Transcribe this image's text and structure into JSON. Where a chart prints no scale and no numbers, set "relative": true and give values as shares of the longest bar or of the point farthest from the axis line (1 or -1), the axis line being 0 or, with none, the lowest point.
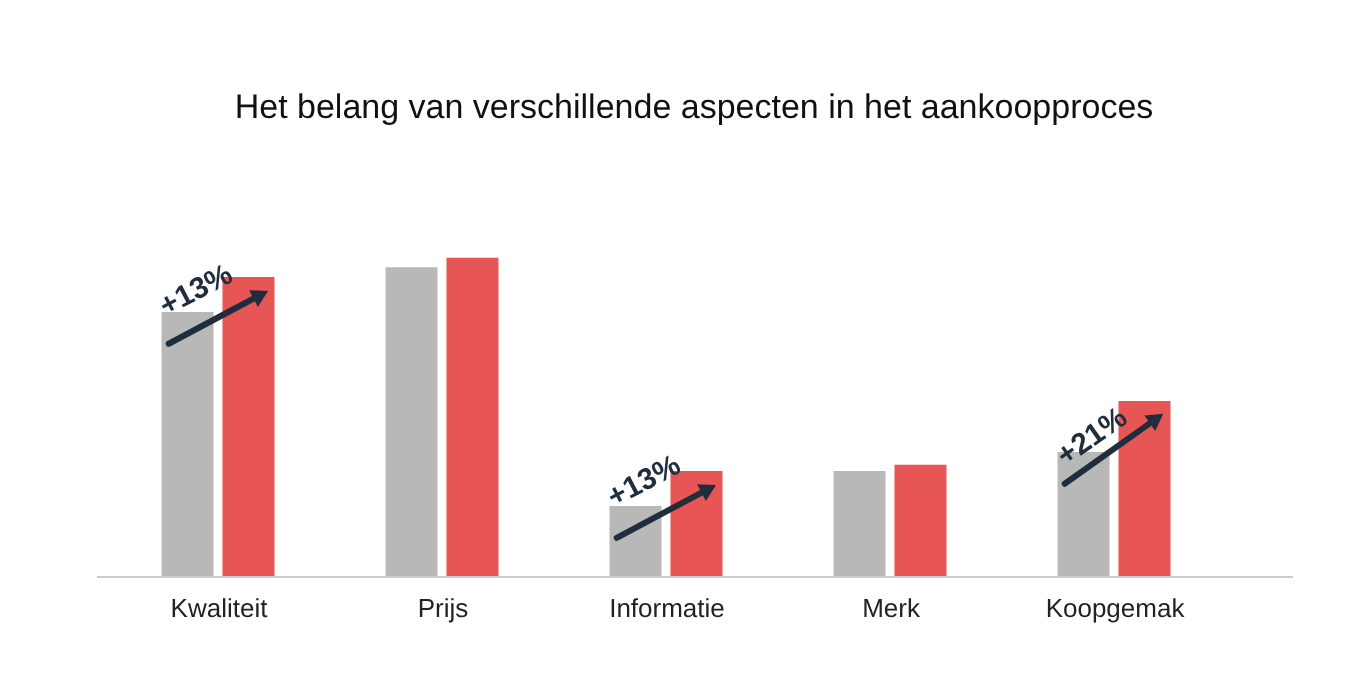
{
  "chart_data": {
    "type": "bar",
    "title": "Het belang van verschillende aspecten in het aankoopproces",
    "relative": true,
    "categories": [
      "Kwaliteit",
      "Prijs",
      "Informatie",
      "Merk",
      "Koopgemak"
    ],
    "series": [
      {
        "color": "#b8b8b8",
        "values": [
          0.83,
          0.97,
          0.22,
          0.33,
          0.39
        ]
      },
      {
        "color": "#e85555",
        "values": [
          0.94,
          1,
          0.33,
          0.35,
          0.55
        ]
      }
    ],
    "annotations": [
      {
        "text": "+13%",
        "x": "Kwaliteit",
        "y": 0.9
      },
      {
        "text": "+13%",
        "x": "Informatie",
        "y": 0.3
      },
      {
        "text": "+21%",
        "x": "Koopgemak",
        "y": 0.44
      }
    ]
  }
}
